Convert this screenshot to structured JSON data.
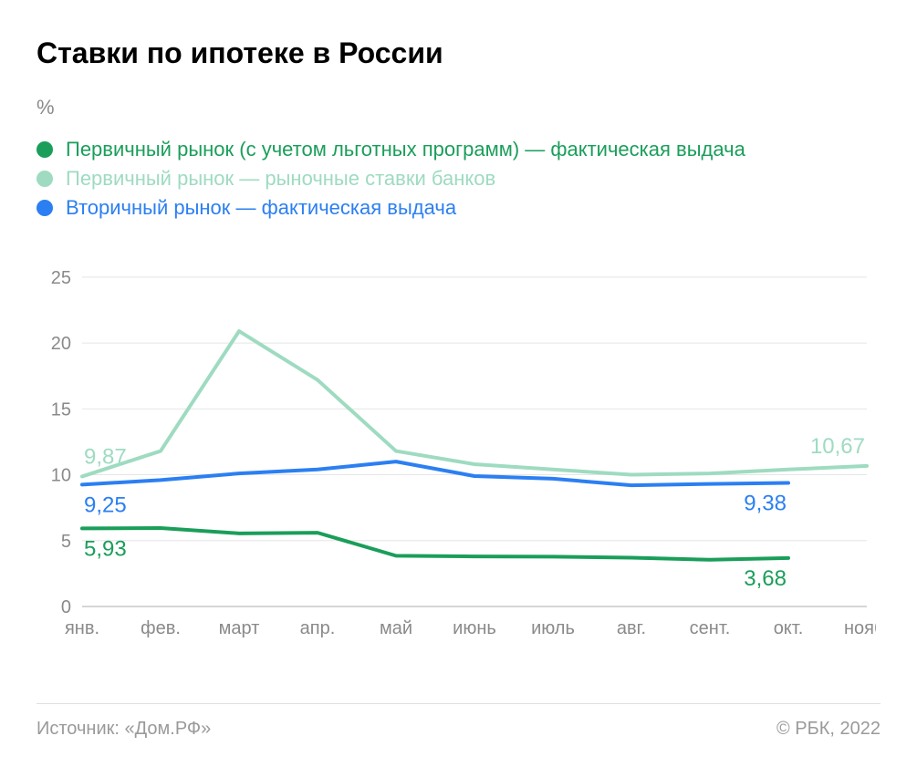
{
  "title": "Ставки по ипотеке в России",
  "unit": "%",
  "source_label": "Источник: «Дом.РФ»",
  "copyright": "© РБК, 2022",
  "background_color": "#ffffff",
  "grid_color": "#e5e5e5",
  "axis_color": "#c8c8c8",
  "tick_label_color": "#8a8a8a",
  "title_fontsize": 32,
  "label_fontsize": 20,
  "legend_fontsize": 22,
  "chart": {
    "type": "line",
    "xlabels": [
      "янв.",
      "фев.",
      "март",
      "апр.",
      "май",
      "июнь",
      "июль",
      "авг.",
      "сент.",
      "окт.",
      "нояб."
    ],
    "ylim": [
      0,
      27
    ],
    "yticks": [
      0,
      5,
      10,
      15,
      20,
      25
    ],
    "line_width": 4,
    "series": [
      {
        "id": "primary_actual",
        "label": "Первичный рынок (с учетом льготных программ) — фактическая выдача",
        "color": "#1a9e5a",
        "values": [
          5.93,
          5.95,
          5.55,
          5.6,
          3.85,
          3.8,
          3.78,
          3.7,
          3.55,
          3.68,
          null
        ],
        "start_label": "5,93",
        "end_label": "3,68",
        "start_label_pos": "below",
        "end_label_pos": "below"
      },
      {
        "id": "primary_market",
        "label": "Первичный рынок — рыночные ставки банков",
        "color": "#9edbc1",
        "values": [
          9.87,
          11.8,
          20.9,
          17.2,
          11.8,
          10.8,
          10.4,
          10.0,
          10.1,
          10.4,
          10.67
        ],
        "start_label": "9,87",
        "end_label": "10,67",
        "start_label_pos": "above",
        "end_label_pos": "above"
      },
      {
        "id": "secondary_actual",
        "label": "Вторичный рынок — фактическая выдача",
        "color": "#2b7ff2",
        "values": [
          9.25,
          9.6,
          10.1,
          10.4,
          11.0,
          9.9,
          9.7,
          9.2,
          9.3,
          9.38,
          null
        ],
        "start_label": "9,25",
        "end_label": "9,38",
        "start_label_pos": "below",
        "end_label_pos": "below"
      }
    ]
  }
}
